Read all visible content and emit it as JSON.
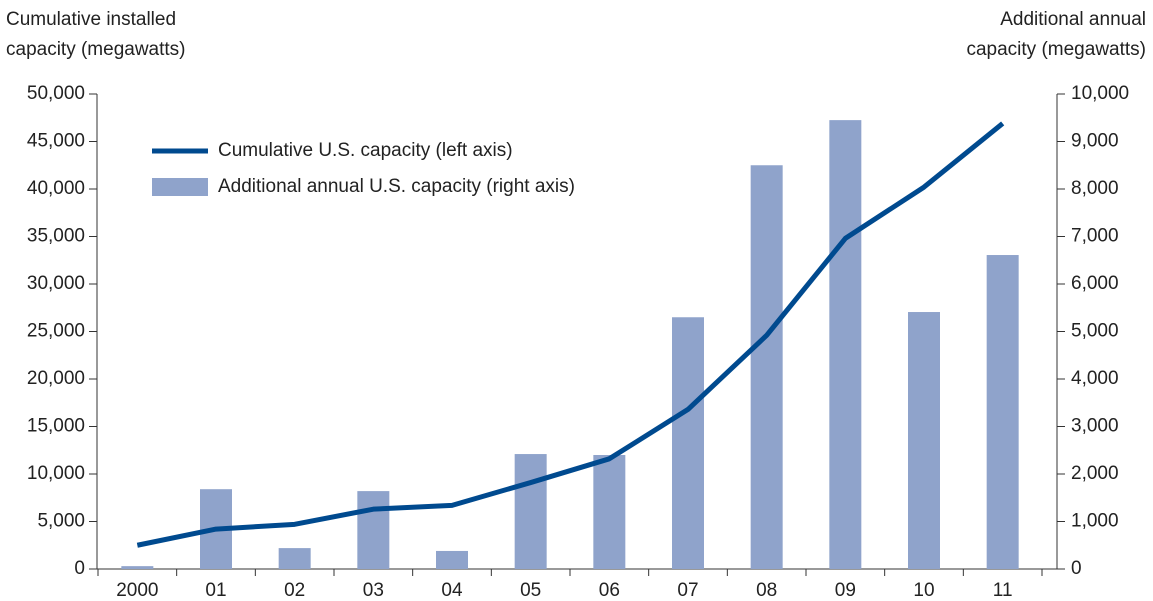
{
  "chart_data": {
    "type": "bar-line",
    "y_label": [
      "Cumulative installed",
      "capacity (megawatts)"
    ],
    "y2_label": [
      "Additional annual",
      "capacity (megawatts)"
    ],
    "categories": [
      "2000",
      "01",
      "02",
      "03",
      "04",
      "05",
      "06",
      "07",
      "08",
      "09",
      "10",
      "11"
    ],
    "series": [
      {
        "name": "Cumulative U.S. capacity (left axis)",
        "type": "line",
        "color": "#004a8f",
        "values": [
          2500,
          4200,
          4700,
          6300,
          6700,
          9100,
          11600,
          16800,
          24600,
          34800,
          40200,
          46900
        ]
      },
      {
        "name": "Additional annual U.S. capacity (right axis)",
        "type": "bar",
        "axis": "y2",
        "color": "#8fa3cb",
        "values": [
          60,
          1680,
          440,
          1640,
          380,
          2420,
          2400,
          5300,
          8500,
          9450,
          5410,
          6610
        ]
      }
    ],
    "ylim": [
      0,
      50000
    ],
    "yticks": [
      0,
      {
        "value": 5000,
        "label": "5,000"
      },
      {
        "value": 10000,
        "label": "10,000"
      },
      {
        "value": 15000,
        "label": "15,000"
      },
      {
        "value": 20000,
        "label": "20,000"
      },
      {
        "value": 25000,
        "label": "25,000"
      },
      {
        "value": 30000,
        "label": "30,000"
      },
      {
        "value": 35000,
        "label": "35,000"
      },
      {
        "value": 40000,
        "label": "40,000"
      },
      {
        "value": 45000,
        "label": "45,000"
      },
      {
        "value": 50000,
        "label": "50,000"
      }
    ],
    "y2lim": [
      0,
      10000
    ],
    "y2ticks": [
      0,
      {
        "value": 1000,
        "label": "1,000"
      },
      {
        "value": 2000,
        "label": "2,000"
      },
      {
        "value": 3000,
        "label": "3,000"
      },
      {
        "value": 4000,
        "label": "4,000"
      },
      {
        "value": 5000,
        "label": "5,000"
      },
      {
        "value": 6000,
        "label": "6,000"
      },
      {
        "value": 7000,
        "label": "7,000"
      },
      {
        "value": 8000,
        "label": "8,000"
      },
      {
        "value": 9000,
        "label": "9,000"
      },
      {
        "value": 10000,
        "label": "10,000"
      }
    ],
    "legend": "upper left"
  }
}
